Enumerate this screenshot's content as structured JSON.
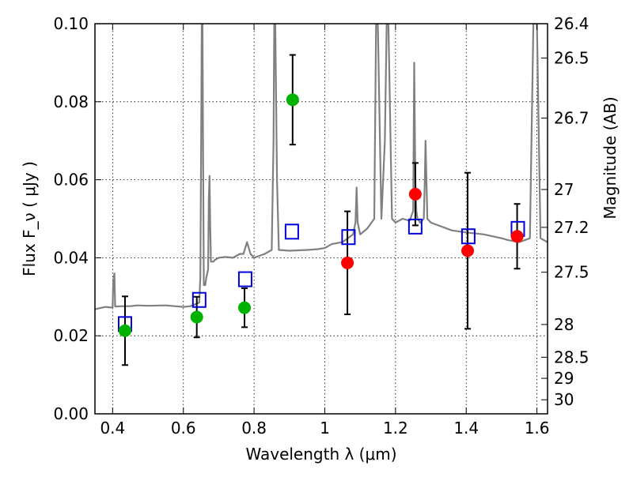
{
  "chart_data": {
    "type": "scatter",
    "title": "",
    "xlabel": "Wavelength  λ (μm)",
    "ylabel": "Flux  F_ν  ( μJy )",
    "ylabel_right": "Magnitude (AB)",
    "xlim": [
      0.35,
      1.63
    ],
    "ylim": [
      0,
      0.1
    ],
    "grid": true,
    "x_ticks": [
      0.4,
      0.6,
      0.8,
      1.0,
      1.2,
      1.4,
      1.6
    ],
    "x_tick_labels": [
      "0.4",
      "0.6",
      "0.8",
      "1",
      "1.2",
      "1.4",
      "1.6"
    ],
    "y_ticks": [
      0,
      0.02,
      0.04,
      0.06,
      0.08,
      0.1
    ],
    "y_tick_labels": [
      "0.00",
      "0.02",
      "0.04",
      "0.06",
      "0.08",
      "0.10"
    ],
    "right_ticks": [
      {
        "label": "26.4",
        "flux": 0.1
      },
      {
        "label": "26.5",
        "flux": 0.0912
      },
      {
        "label": "26.7",
        "flux": 0.0758
      },
      {
        "label": "27",
        "flux": 0.0575
      },
      {
        "label": "27.2",
        "flux": 0.0478
      },
      {
        "label": "27.5",
        "flux": 0.0363
      },
      {
        "label": "28",
        "flux": 0.0229
      },
      {
        "label": "28.5",
        "flux": 0.0145
      },
      {
        "label": "29",
        "flux": 0.0091
      },
      {
        "label": "30",
        "flux": 0.0036
      }
    ],
    "colors": {
      "model_spectrum": "#808080",
      "green_points": "#00b200",
      "red_points": "#ff0000",
      "model_photometry": "#0000dd",
      "error_bars": "#000000"
    },
    "series": [
      {
        "marker": "circle",
        "color": "#00b200",
        "x": [
          0.435,
          0.638,
          0.773,
          0.909
        ],
        "y": [
          0.0213,
          0.0248,
          0.0272,
          0.0805
        ],
        "yerr": [
          0.0088,
          0.0052,
          0.005,
          0.0115
        ]
      },
      {
        "marker": "circle",
        "color": "#ff0000",
        "x": [
          1.064,
          1.256,
          1.404,
          1.544
        ],
        "y": [
          0.0387,
          0.0563,
          0.0418,
          0.0455
        ],
        "yerr": [
          0.0132,
          0.008,
          0.02,
          0.0083
        ]
      },
      {
        "marker": "open-square",
        "color": "#0000dd",
        "x": [
          0.435,
          0.645,
          0.775,
          0.907,
          1.067,
          1.256,
          1.406,
          1.546
        ],
        "y": [
          0.023,
          0.0292,
          0.0345,
          0.0467,
          0.0453,
          0.048,
          0.0455,
          0.0474
        ]
      },
      {
        "marker": "line",
        "color": "#808080",
        "x": [
          0.35,
          0.37,
          0.38,
          0.4,
          0.402,
          0.405,
          0.407,
          0.43,
          0.45,
          0.47,
          0.5,
          0.55,
          0.6,
          0.62,
          0.645,
          0.648,
          0.65,
          0.652,
          0.654,
          0.656,
          0.658,
          0.662,
          0.665,
          0.67,
          0.672,
          0.674,
          0.676,
          0.678,
          0.685,
          0.69,
          0.7,
          0.72,
          0.74,
          0.76,
          0.77,
          0.78,
          0.79,
          0.8,
          0.83,
          0.85,
          0.855,
          0.857,
          0.86,
          0.865,
          0.87,
          0.9,
          0.95,
          0.98,
          1.0,
          1.02,
          1.05,
          1.08,
          1.087,
          1.09,
          1.093,
          1.1,
          1.12,
          1.14,
          1.145,
          1.15,
          1.16,
          1.17,
          1.175,
          1.18,
          1.19,
          1.2,
          1.22,
          1.24,
          1.25,
          1.253,
          1.256,
          1.259,
          1.262,
          1.27,
          1.28,
          1.283,
          1.285,
          1.29,
          1.3,
          1.33,
          1.36,
          1.4,
          1.45,
          1.5,
          1.52,
          1.55,
          1.58,
          1.59,
          1.6,
          1.61,
          1.63
        ],
        "y": [
          0.0268,
          0.0272,
          0.0274,
          0.0272,
          0.034,
          0.036,
          0.0275,
          0.0276,
          0.0276,
          0.0278,
          0.0277,
          0.0278,
          0.0274,
          0.0276,
          0.0285,
          0.035,
          0.065,
          0.1,
          0.1,
          0.065,
          0.033,
          0.033,
          0.035,
          0.037,
          0.055,
          0.061,
          0.048,
          0.039,
          0.039,
          0.0395,
          0.04,
          0.0402,
          0.04,
          0.041,
          0.041,
          0.044,
          0.041,
          0.04,
          0.041,
          0.042,
          0.07,
          0.1,
          0.1,
          0.06,
          0.042,
          0.0418,
          0.042,
          0.0422,
          0.0425,
          0.0435,
          0.044,
          0.046,
          0.049,
          0.058,
          0.049,
          0.046,
          0.0475,
          0.05,
          0.1,
          0.1,
          0.05,
          0.07,
          0.1,
          0.1,
          0.05,
          0.049,
          0.05,
          0.0495,
          0.052,
          0.09,
          0.06,
          0.052,
          0.05,
          0.049,
          0.05,
          0.06,
          0.07,
          0.05,
          0.049,
          0.048,
          0.047,
          0.0465,
          0.046,
          0.045,
          0.0445,
          0.044,
          0.045,
          0.1,
          0.1,
          0.045,
          0.044
        ]
      }
    ]
  }
}
